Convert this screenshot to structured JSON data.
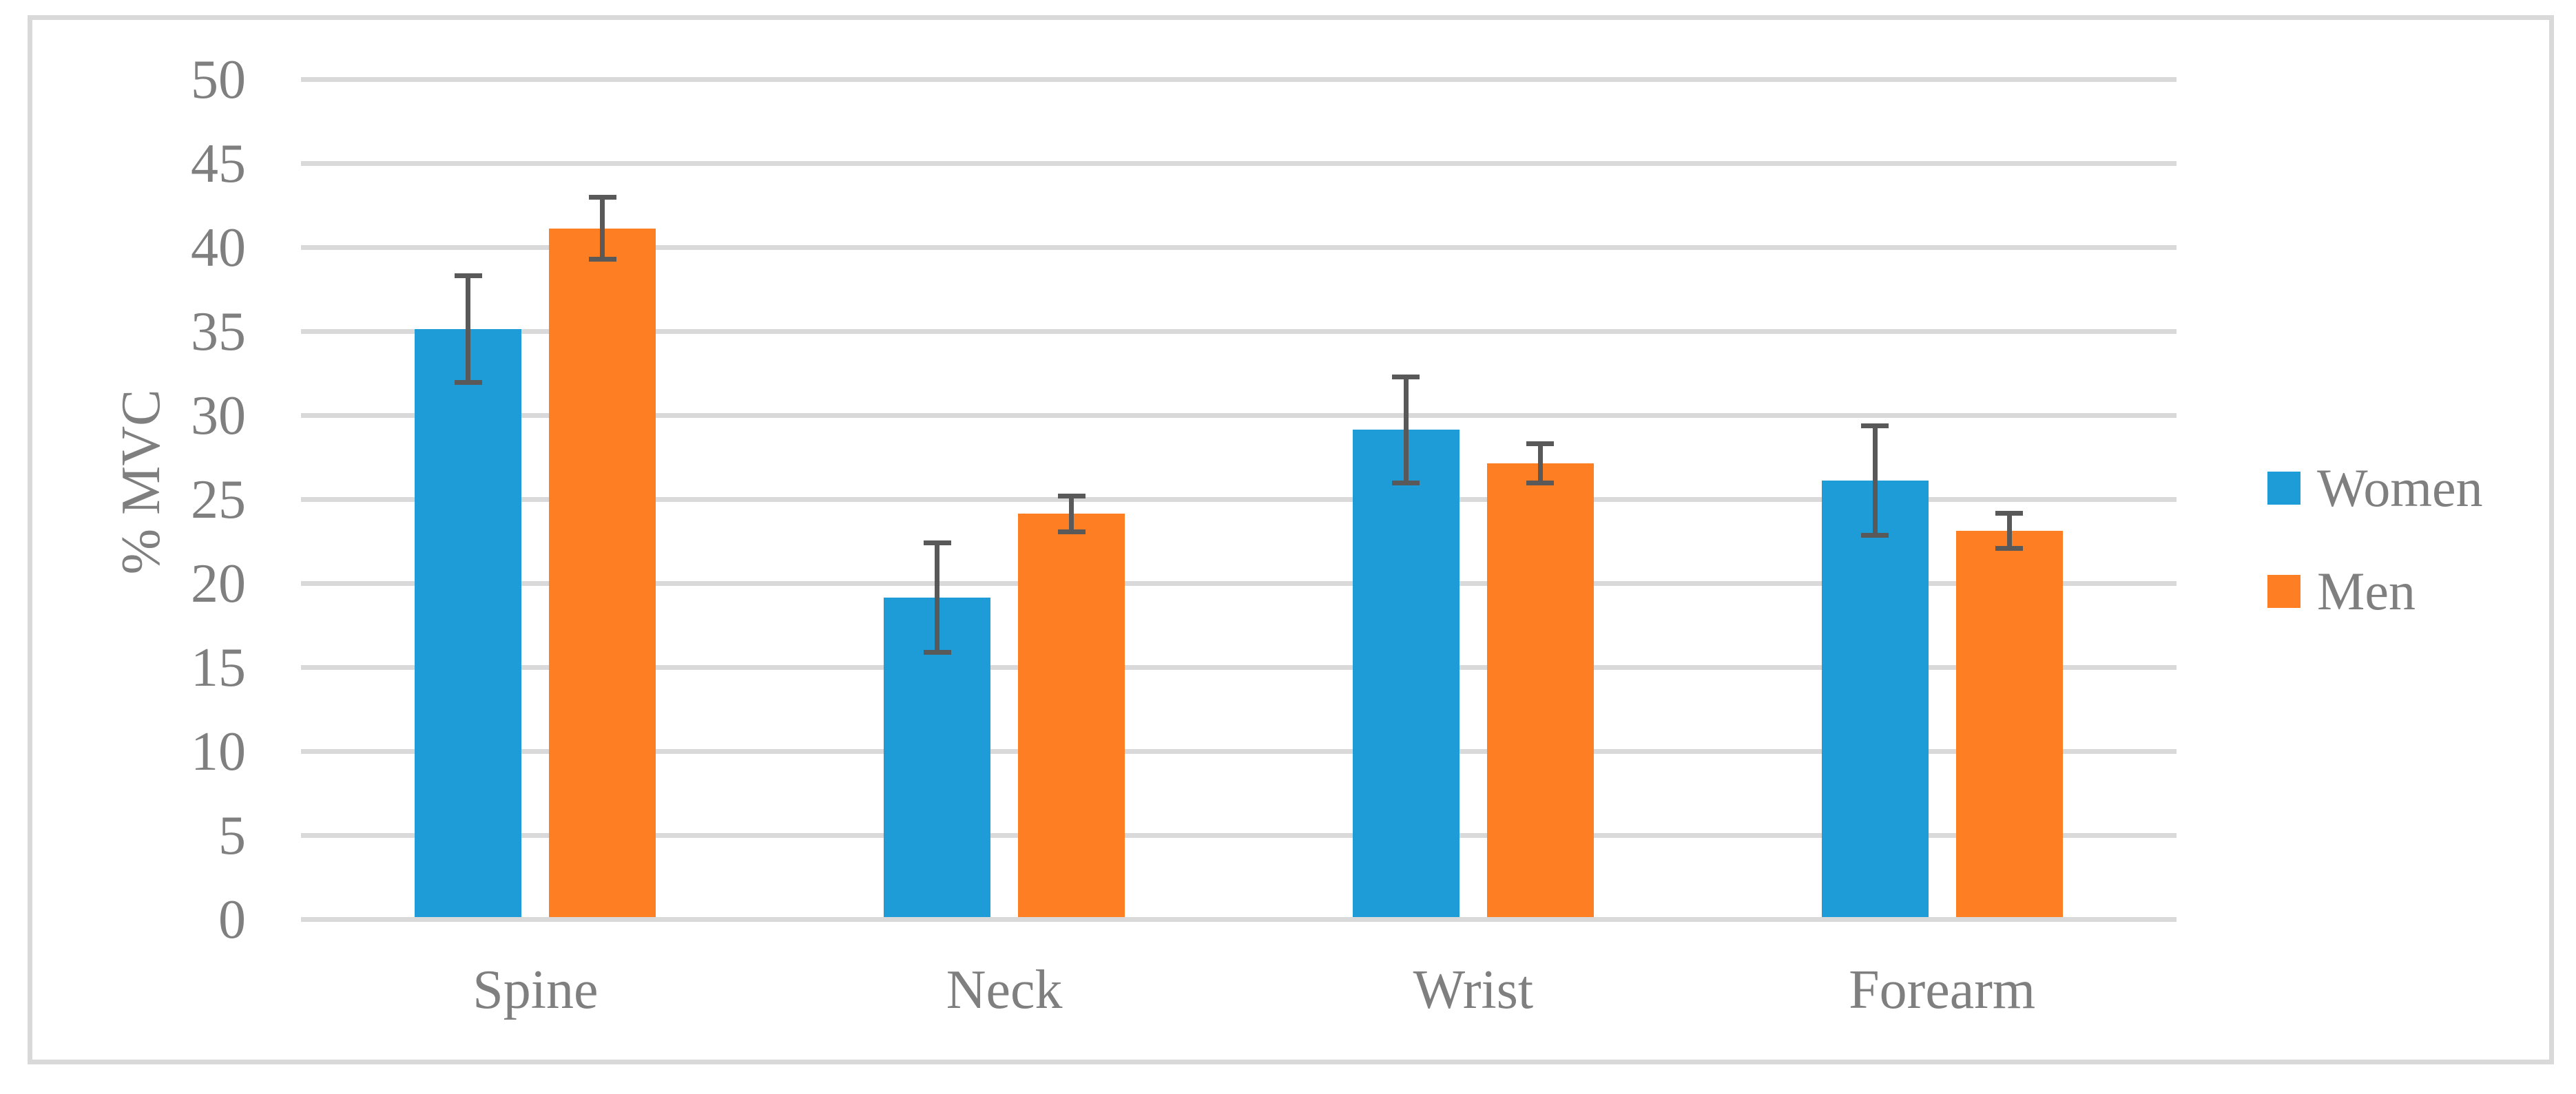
{
  "chart_data": {
    "type": "bar",
    "title": "",
    "ylabel": "% MVC",
    "xlabel": "",
    "categories": [
      "Spine",
      "Neck",
      "Wrist",
      "Forearm"
    ],
    "series": [
      {
        "name": "Women",
        "color": "#1E9CD8",
        "values": [
          35,
          19,
          29,
          26
        ],
        "errors": [
          3.3,
          3.4,
          3.3,
          3.4
        ]
      },
      {
        "name": "Men",
        "color": "#FD7E23",
        "values": [
          41,
          24,
          27,
          23
        ],
        "errors": [
          2.0,
          1.2,
          1.3,
          1.2
        ]
      }
    ],
    "y_axis": {
      "min": 0,
      "max": 50,
      "step": 5,
      "tick_labels": [
        "0",
        "5",
        "10",
        "15",
        "20",
        "25",
        "30",
        "35",
        "40",
        "45",
        "50"
      ]
    },
    "legend": {
      "position": "right",
      "entries": [
        "Women",
        "Men"
      ]
    },
    "grid": true,
    "error_bars": true
  },
  "colors": {
    "women": "#1E9CD8",
    "men": "#FD7E23",
    "error_bar": "#595959",
    "gridline": "#D9D9D9",
    "border": "#D9D9D9",
    "text": "#7F7F7F",
    "background": "#FFFFFF"
  }
}
